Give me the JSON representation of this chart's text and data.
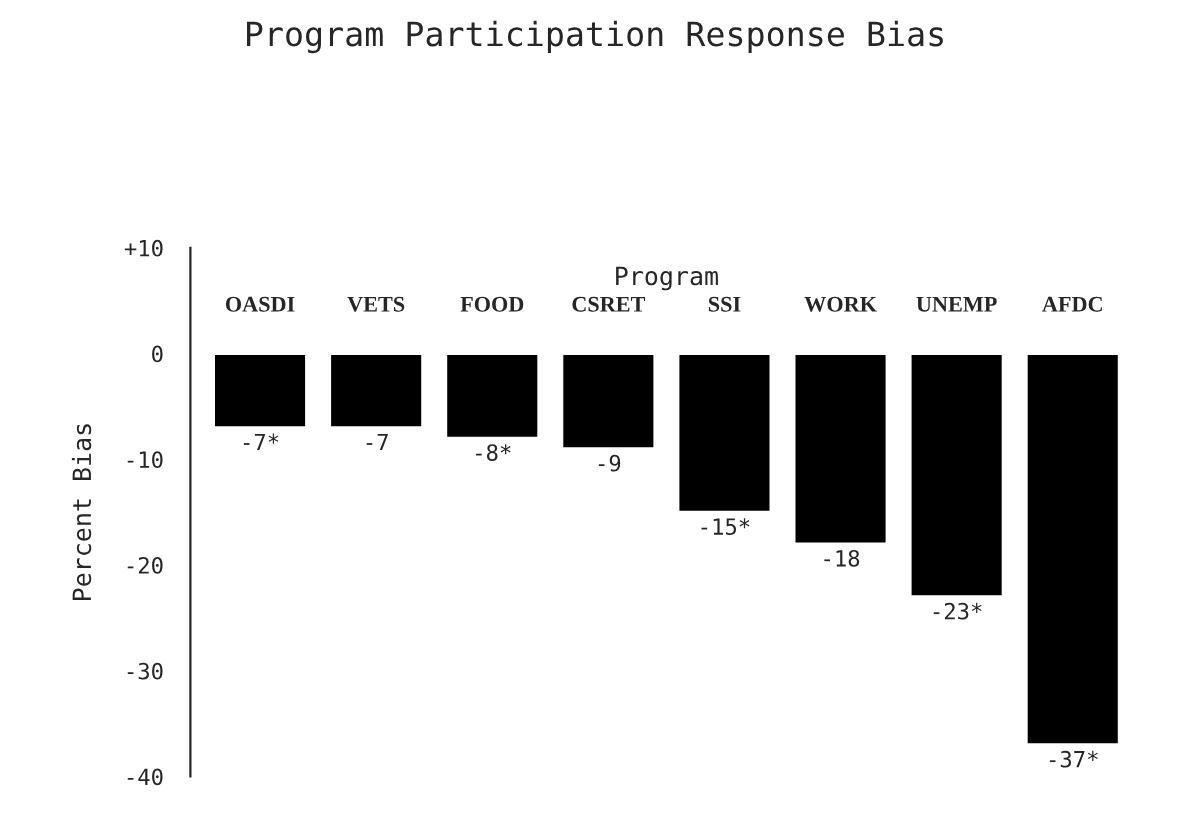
{
  "chart_data": {
    "type": "bar",
    "title": "Program Participation Response Bias",
    "xlabel": "Program",
    "ylabel": "Percent Bias",
    "categories": [
      "OASDI",
      "VETS",
      "FOOD",
      "CSRET",
      "SSI",
      "WORK",
      "UNEMP",
      "AFDC"
    ],
    "values": [
      -7,
      -7,
      -8,
      -9,
      -15,
      -18,
      -23,
      -37
    ],
    "value_labels": [
      "-7*",
      "-7",
      "-8*",
      "-9",
      "-15*",
      "-18",
      "-23*",
      "-37*"
    ],
    "color": "#000000",
    "ylim": [
      -40,
      10
    ],
    "yticks": [
      {
        "value": 10,
        "label": "+10"
      },
      0,
      -10,
      -20,
      -30,
      -40
    ],
    "grid": false,
    "legend": false
  }
}
